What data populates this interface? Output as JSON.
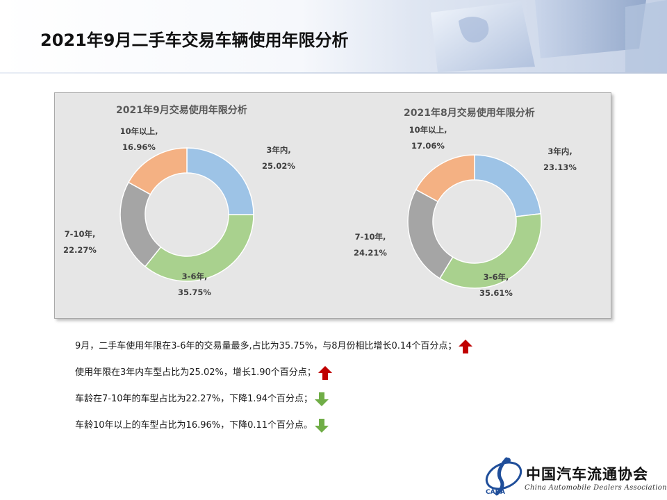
{
  "page": {
    "title": "2021年9月二手车交易车辆使用年限分析"
  },
  "chart_data": [
    {
      "type": "donut",
      "title": "2021年9月交易使用年限分析",
      "categories": [
        "3年内",
        "3-6年",
        "7-10年",
        "10年以上"
      ],
      "values": [
        25.02,
        35.75,
        22.27,
        16.96
      ],
      "labels": [
        "3年内,",
        "3-6年,",
        "7-10年,",
        "10年以上,"
      ],
      "value_labels": [
        "25.02%",
        "35.75%",
        "22.27%",
        "16.96%"
      ],
      "colors": [
        "#9dc3e6",
        "#a9d18e",
        "#a5a5a5",
        "#f4b183"
      ]
    },
    {
      "type": "donut",
      "title": "2021年8月交易使用年限分析",
      "categories": [
        "3年内",
        "3-6年",
        "7-10年",
        "10年以上"
      ],
      "values": [
        23.13,
        35.61,
        24.21,
        17.06
      ],
      "labels": [
        "3年内,",
        "3-6年,",
        "7-10年,",
        "10年以上,"
      ],
      "value_labels": [
        "23.13%",
        "35.61%",
        "24.21%",
        "17.06%"
      ],
      "colors": [
        "#9dc3e6",
        "#a9d18e",
        "#a5a5a5",
        "#f4b183"
      ]
    }
  ],
  "notes": [
    {
      "text": "9月，二手车使用年限在3-6年的交易量最多,占比为35.75%，与8月份相比增长0.14个百分点；",
      "trend": "up",
      "icon": "red-up-arrow-icon"
    },
    {
      "text": "使用年限在3年内车型占比为25.02%，增长1.90个百分点；",
      "trend": "up",
      "icon": "red-up-arrow-icon"
    },
    {
      "text": "车龄在7-10年的车型占比为22.27%，下降1.94个百分点；",
      "trend": "down",
      "icon": "green-down-arrow-icon"
    },
    {
      "text": "车龄10年以上的车型占比为16.96%，下降0.11个百分点。",
      "trend": "down",
      "icon": "green-down-arrow-icon"
    }
  ],
  "colors": {
    "up": "#c00000",
    "down": "#70ad47"
  },
  "logo": {
    "name_cn": "中国汽车流通协会",
    "name_en": "China Automobile Dealers Association",
    "mark_text": "CADA"
  }
}
